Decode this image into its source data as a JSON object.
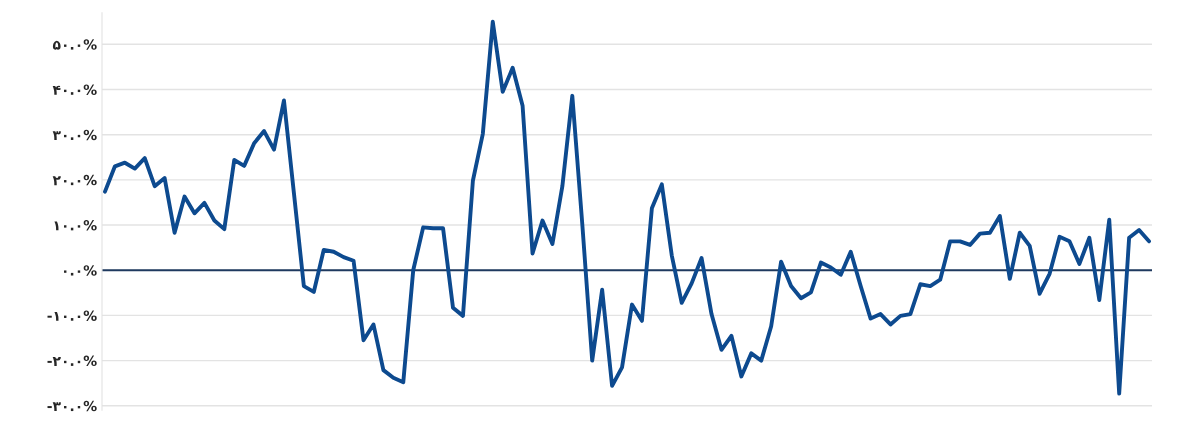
{
  "chart_data": {
    "type": "line",
    "categories": [
      null,
      null,
      null,
      null,
      null,
      null,
      null,
      null,
      null,
      null,
      null,
      null,
      null,
      null,
      null,
      null,
      null,
      null,
      null,
      null,
      null,
      null,
      null,
      null,
      null,
      null,
      null,
      null,
      null,
      null,
      null,
      null,
      null,
      null,
      null,
      null,
      null,
      null,
      null,
      null,
      null,
      null,
      null,
      null,
      null,
      null,
      null,
      null,
      null,
      null,
      null,
      null,
      null,
      null,
      null,
      null,
      null,
      null,
      null,
      null,
      null,
      null,
      null,
      null,
      null,
      null,
      null,
      null,
      null,
      null,
      null,
      null,
      null,
      null,
      null,
      null,
      null,
      null,
      null,
      null,
      null,
      null,
      null,
      null,
      null,
      null,
      null,
      null,
      null,
      null,
      null,
      null,
      null,
      null,
      null,
      null,
      null,
      null,
      null,
      null,
      null,
      null,
      null,
      null,
      null,
      null
    ],
    "series": [
      {
        "color": "#0d4a8f",
        "values": [
          17.4,
          23,
          23.8,
          22.5,
          24.8,
          18.6,
          20.4,
          8.3,
          16.3,
          12.6,
          14.9,
          11,
          9.1,
          24.4,
          23.1,
          28.1,
          30.8,
          26.7,
          37.6,
          17.1,
          -3.5,
          -4.8,
          4.5,
          4.1,
          2.9,
          2.1,
          -15.5,
          -12,
          -22.1,
          -23.8,
          -24.8,
          0,
          9.5,
          9.3,
          9.3,
          -8.3,
          -10.1,
          19.8,
          30.2,
          55,
          39.5,
          44.8,
          36.4,
          3.7,
          11,
          5.8,
          18.6,
          38.6,
          10.3,
          -20,
          -4.3,
          -25.6,
          -21.5,
          -7.6,
          -11.2,
          13.7,
          19,
          3.3,
          -7.2,
          -2.9,
          2.7,
          -9.7,
          -17.6,
          -14.5,
          -23.5,
          -18.4,
          -20,
          -12.4,
          1.9,
          -3.5,
          -6.2,
          -4.9,
          1.7,
          0.6,
          -1.0,
          4.1,
          -3.5,
          -10.7,
          -9.7,
          -12,
          -10.1,
          -9.7,
          -3.1,
          -3.5,
          -2.1,
          6.4,
          6.4,
          5.6,
          8.1,
          8.3,
          12,
          -1.9,
          8.3,
          5.4,
          -5.2,
          -0.8,
          7.4,
          6.4,
          1.4,
          7.2,
          -6.6,
          11.2,
          -27.3,
          7.2,
          8.9,
          6.4
        ]
      }
    ],
    "ylim": [
      -31,
      57
    ],
    "yticks": [
      {
        "value": -30,
        "label": "-۳۰.۰%"
      },
      {
        "value": -20,
        "label": "-۲۰.۰%"
      },
      {
        "value": -10,
        "label": "-۱۰.۰%"
      },
      {
        "value": 0,
        "label": "۰.۰%"
      },
      {
        "value": 10,
        "label": "۱۰.۰%"
      },
      {
        "value": 20,
        "label": "۲۰.۰%"
      },
      {
        "value": 30,
        "label": "۳۰.۰%"
      },
      {
        "value": 40,
        "label": "۴۰.۰%"
      },
      {
        "value": 50,
        "label": "۵۰.۰%"
      }
    ],
    "tick_labels": "y",
    "grid": "y",
    "marker": "none",
    "line_style": "solid",
    "ref_lines": [
      {
        "axis": "y",
        "value": 0,
        "color": "#1f3a5f",
        "line_style": "solid"
      }
    ]
  }
}
